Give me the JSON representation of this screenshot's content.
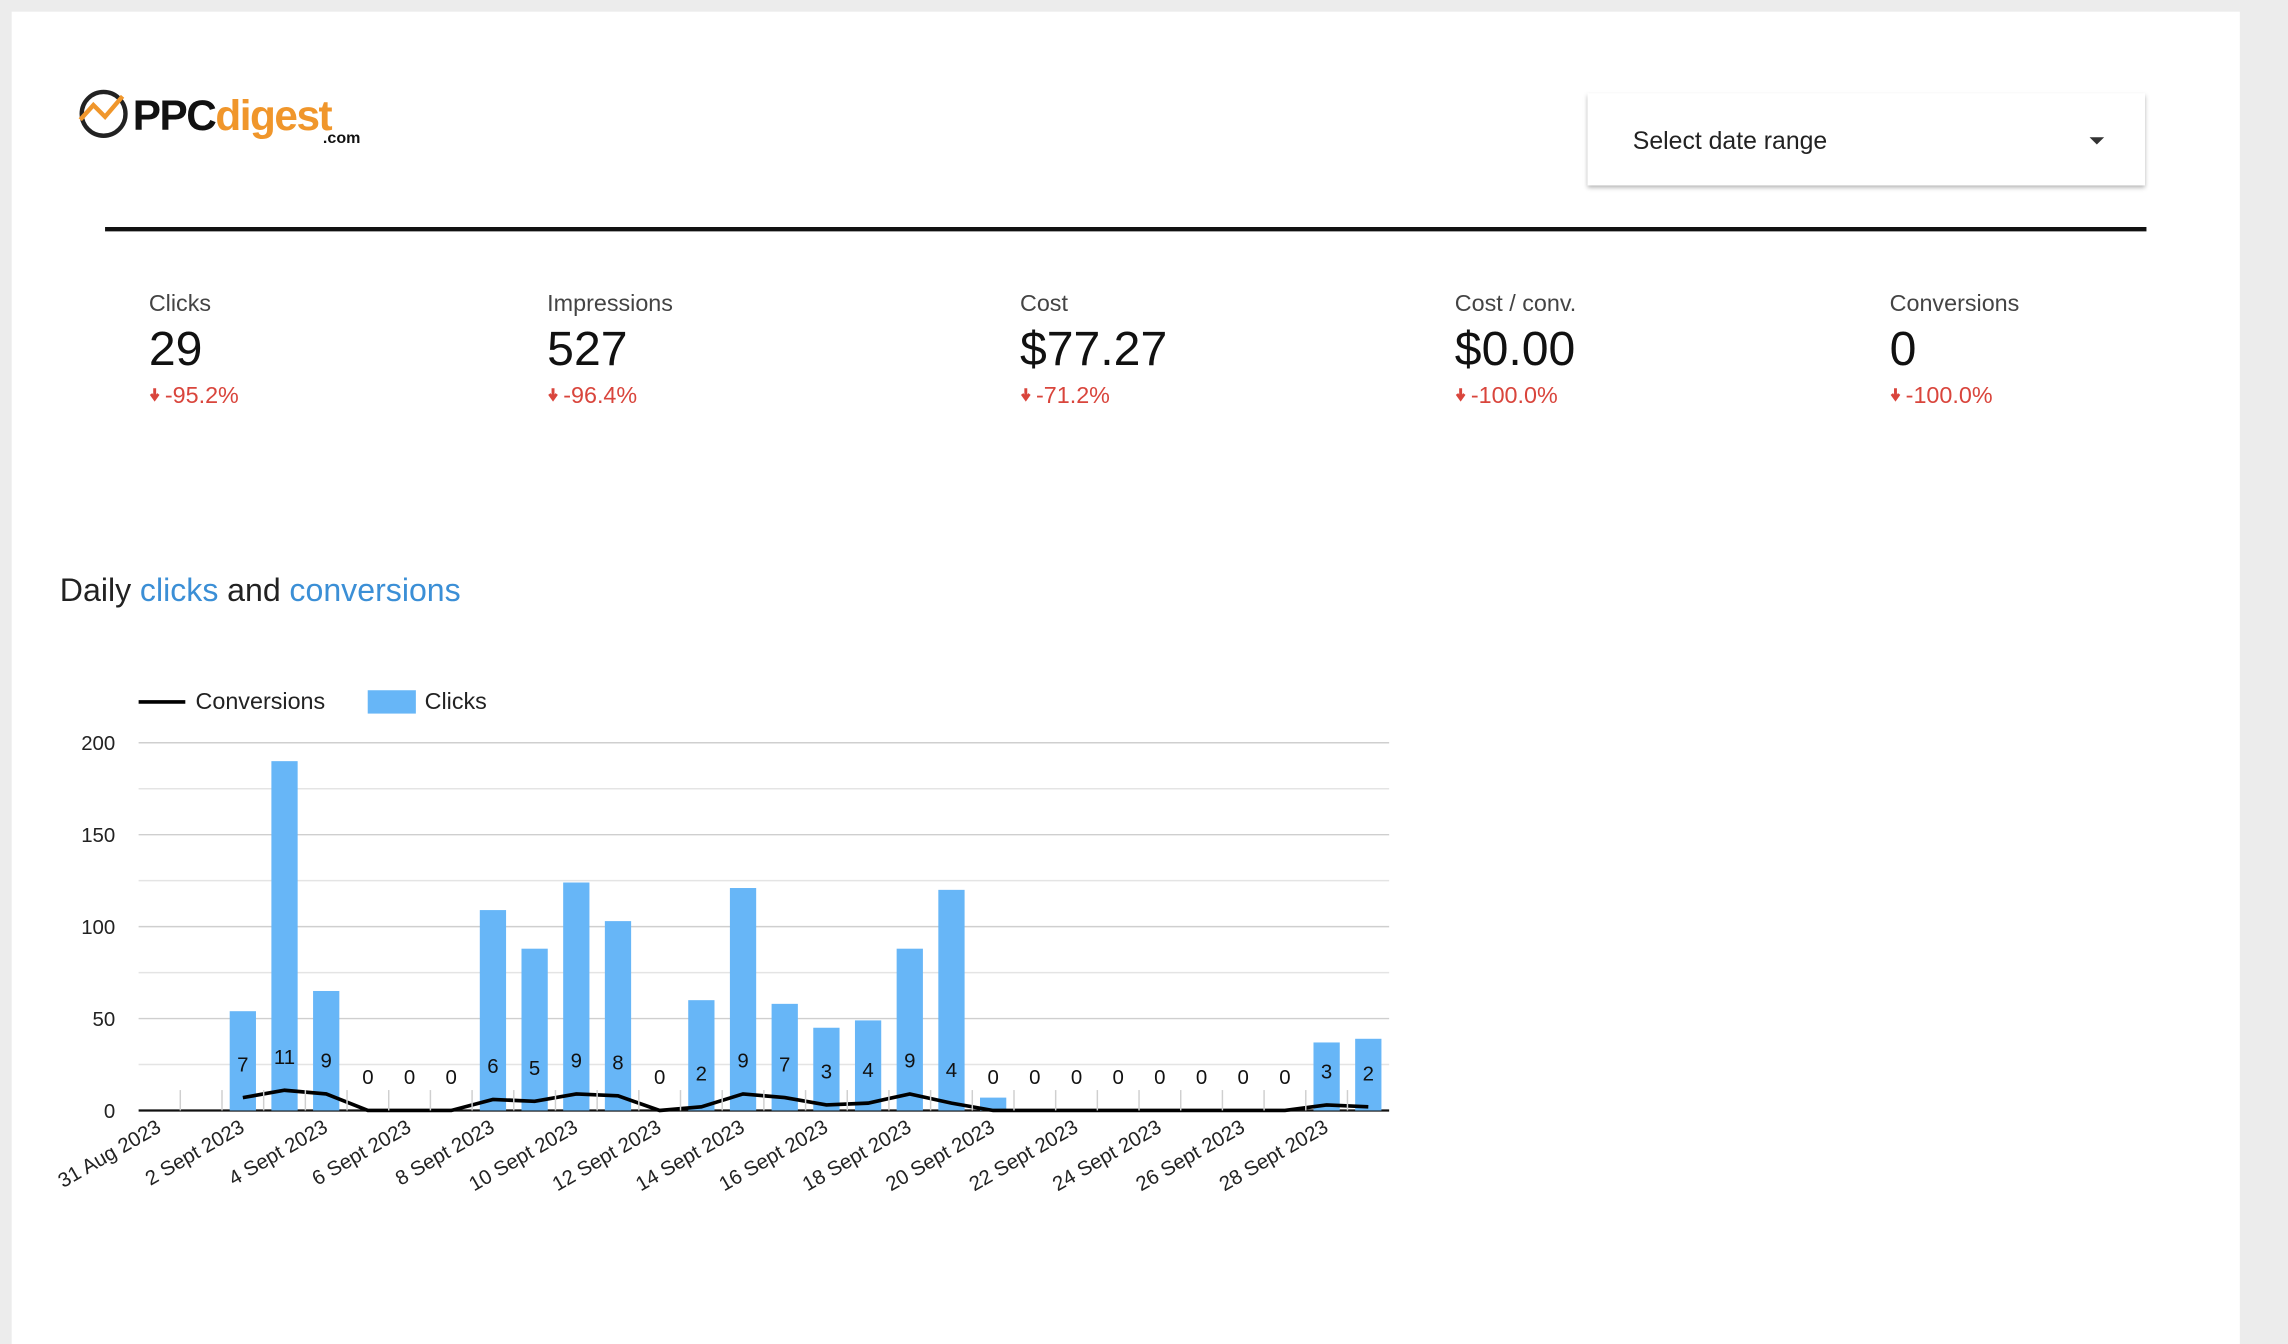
{
  "header": {
    "logo": {
      "brand_1": "PPC",
      "brand_2": "digest",
      "suffix": ".com"
    },
    "date_select": "Select date range"
  },
  "kpis": [
    {
      "label": "Clicks",
      "value": "29",
      "change": "-95.2%"
    },
    {
      "label": "Impressions",
      "value": "527",
      "change": "-96.4%"
    },
    {
      "label": "Cost",
      "value": "$77.27",
      "change": "-71.2%"
    },
    {
      "label": "Cost / conv.",
      "value": "$0.00",
      "change": "-100.0%"
    },
    {
      "label": "Conversions",
      "value": "0",
      "change": "-100.0%"
    }
  ],
  "chart_data": {
    "type": "bar_line",
    "title_parts": [
      "Daily",
      "clicks",
      "and",
      "conversions"
    ],
    "categories": [
      "31 Aug 2023",
      null,
      "2 Sept 2023",
      null,
      "4 Sept 2023",
      null,
      "6 Sept 2023",
      null,
      "8 Sept 2023",
      null,
      "10 Sept 2023",
      null,
      "12 Sept 2023",
      null,
      "14 Sept 2023",
      null,
      "16 Sept 2023",
      null,
      "18 Sept 2023",
      null,
      "20 Sept 2023",
      null,
      "22 Sept 2023",
      null,
      "24 Sept 2023",
      null,
      "26 Sept 2023",
      null,
      "28 Sept 2023",
      null
    ],
    "series": [
      {
        "name": "Conversions",
        "type": "line",
        "color": "#000000",
        "values": [
          null,
          null,
          7,
          11,
          9,
          0,
          0,
          0,
          6,
          5,
          9,
          8,
          0,
          2,
          9,
          7,
          3,
          4,
          9,
          4,
          0,
          0,
          0,
          0,
          0,
          0,
          0,
          0,
          3,
          2
        ]
      },
      {
        "name": "Clicks",
        "type": "bar",
        "color": "#67b6f7",
        "values": [
          null,
          null,
          54,
          190,
          65,
          0,
          0,
          0,
          109,
          88,
          124,
          103,
          0,
          60,
          121,
          58,
          45,
          49,
          88,
          120,
          7,
          0,
          0,
          0,
          0,
          0,
          0,
          0,
          37,
          39
        ]
      }
    ],
    "ylim": [
      0,
      200
    ],
    "yticks": [
      0,
      50,
      100,
      150,
      200
    ],
    "minor_yticks": [
      25,
      75,
      125,
      175
    ],
    "grid": true,
    "legend": "top-left"
  }
}
